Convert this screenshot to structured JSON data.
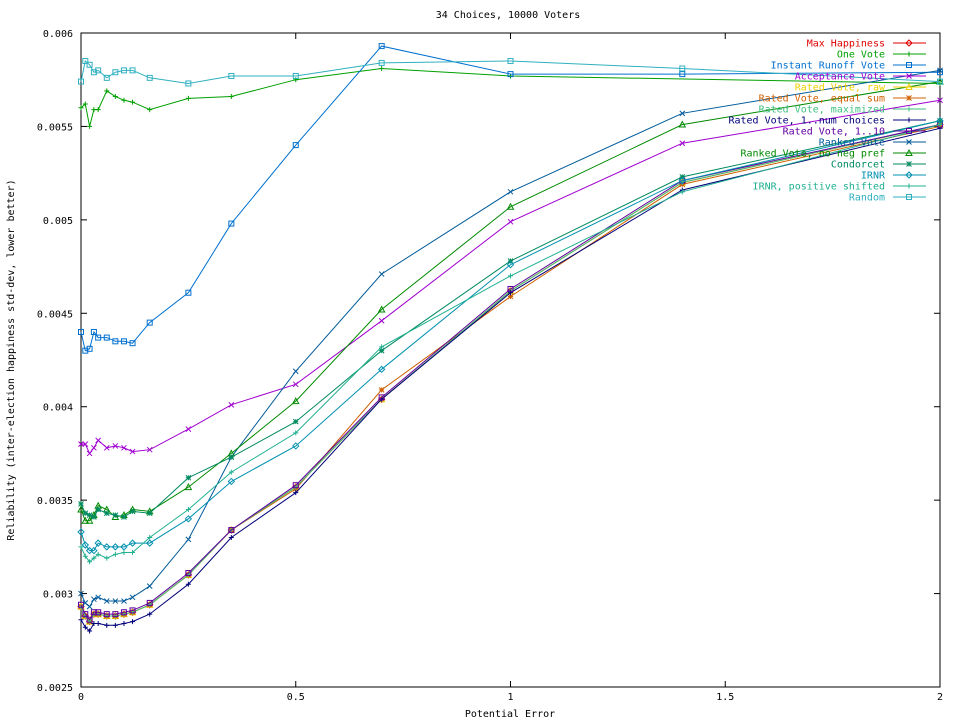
{
  "chart_data": {
    "type": "line",
    "title": "34 Choices, 10000 Voters",
    "xlabel": "Potential Error",
    "ylabel": "Reliability (inter-election happiness std-dev, lower better)",
    "xlim": [
      0,
      2
    ],
    "ylim": [
      0.0025,
      0.006
    ],
    "x_ticks": [
      "0",
      "0.5",
      "1",
      "1.5",
      "2"
    ],
    "y_ticks": [
      "0.0025",
      "0.003",
      "0.0035",
      "0.004",
      "0.0045",
      "0.005",
      "0.0055",
      "0.006"
    ],
    "grid": false,
    "legend_position": "top-right",
    "series": [
      {
        "name": "Max Happiness",
        "color": "#e00000",
        "marker": "diamond",
        "x": [
          0,
          0.01,
          0.02,
          0.03,
          0.04,
          0.06,
          0.08,
          0.1,
          0.12,
          0.16,
          0.25,
          0.35,
          0.5,
          0.7,
          1,
          1.4,
          2
        ],
        "y": [
          0.00293,
          0.00288,
          0.00285,
          0.00289,
          0.00289,
          0.00288,
          0.00288,
          0.00289,
          0.0029,
          0.00294,
          0.0031,
          0.00334,
          0.00357,
          0.00404,
          0.00462,
          0.0052,
          0.00551
        ]
      },
      {
        "name": "One Vote",
        "color": "#00a000",
        "marker": "plus",
        "x": [
          0,
          0.01,
          0.02,
          0.03,
          0.04,
          0.06,
          0.08,
          0.1,
          0.12,
          0.16,
          0.25,
          0.35,
          0.5,
          0.7,
          1,
          2
        ],
        "y": [
          0.0056,
          0.00562,
          0.0055,
          0.00559,
          0.00559,
          0.00569,
          0.00566,
          0.00564,
          0.00563,
          0.00559,
          0.00565,
          0.00566,
          0.00575,
          0.00581,
          0.00577,
          0.00573
        ]
      },
      {
        "name": "Instant Runoff Vote",
        "color": "#0070d0",
        "marker": "square",
        "x": [
          0,
          0.01,
          0.02,
          0.03,
          0.04,
          0.06,
          0.08,
          0.1,
          0.12,
          0.16,
          0.25,
          0.35,
          0.5,
          0.7,
          1,
          1.4,
          2
        ],
        "y": [
          0.0044,
          0.0043,
          0.00431,
          0.0044,
          0.00437,
          0.00437,
          0.00435,
          0.00435,
          0.00434,
          0.00445,
          0.00461,
          0.00498,
          0.0054,
          0.00593,
          0.00578,
          0.00578,
          0.00579
        ]
      },
      {
        "name": "Acceptance Vote",
        "color": "#a000d0",
        "marker": "x",
        "x": [
          0,
          0.01,
          0.02,
          0.03,
          0.04,
          0.06,
          0.08,
          0.1,
          0.12,
          0.16,
          0.25,
          0.35,
          0.5,
          0.7,
          1,
          1.4,
          2
        ],
        "y": [
          0.0038,
          0.0038,
          0.00375,
          0.00378,
          0.00382,
          0.00378,
          0.00379,
          0.00378,
          0.00376,
          0.00377,
          0.00388,
          0.00401,
          0.00412,
          0.00446,
          0.00499,
          0.00541,
          0.00564
        ]
      },
      {
        "name": "Rated Vote, raw",
        "color": "#f0d000",
        "marker": "triangle",
        "x": [
          0,
          0.01,
          0.02,
          0.03,
          0.04,
          0.06,
          0.08,
          0.1,
          0.12,
          0.16,
          0.25,
          0.35,
          0.5,
          0.7,
          1,
          1.4,
          2
        ],
        "y": [
          0.00293,
          0.00288,
          0.00285,
          0.00289,
          0.00289,
          0.00288,
          0.00288,
          0.00289,
          0.0029,
          0.00294,
          0.0031,
          0.00334,
          0.00357,
          0.00404,
          0.00462,
          0.0052,
          0.00551
        ]
      },
      {
        "name": "Rated Vote, equal sum",
        "color": "#d06000",
        "marker": "star",
        "x": [
          0,
          0.01,
          0.02,
          0.03,
          0.04,
          0.06,
          0.08,
          0.1,
          0.12,
          0.16,
          0.25,
          0.35,
          0.5,
          0.7,
          1,
          1.4,
          2
        ],
        "y": [
          0.00293,
          0.00288,
          0.00285,
          0.00289,
          0.00289,
          0.00288,
          0.00288,
          0.00289,
          0.0029,
          0.00294,
          0.0031,
          0.00334,
          0.00356,
          0.00409,
          0.00459,
          0.00519,
          0.0055
        ]
      },
      {
        "name": "Rated Vote, maximized",
        "color": "#40c080",
        "marker": "plus",
        "x": [
          0,
          0.01,
          0.02,
          0.03,
          0.04,
          0.06,
          0.08,
          0.1,
          0.12,
          0.16,
          0.25,
          0.35,
          0.5,
          0.7,
          1,
          1.4,
          2
        ],
        "y": [
          0.00293,
          0.00288,
          0.00285,
          0.00289,
          0.00289,
          0.00288,
          0.00288,
          0.00289,
          0.0029,
          0.00294,
          0.0031,
          0.00334,
          0.00357,
          0.00404,
          0.00462,
          0.0052,
          0.00551
        ]
      },
      {
        "name": "Rated Vote, 1..num choices",
        "color": "#00007a",
        "marker": "plus",
        "x": [
          0,
          0.01,
          0.02,
          0.03,
          0.04,
          0.06,
          0.08,
          0.1,
          0.12,
          0.16,
          0.25,
          0.35,
          0.5,
          0.7,
          1,
          1.4,
          2
        ],
        "y": [
          0.00286,
          0.00282,
          0.0028,
          0.00284,
          0.00284,
          0.00283,
          0.00283,
          0.00284,
          0.00285,
          0.00289,
          0.00305,
          0.0033,
          0.00354,
          0.00404,
          0.00461,
          0.00516,
          0.00549
        ]
      },
      {
        "name": "Rated Vote, 1..10",
        "color": "#6000a0",
        "marker": "square",
        "x": [
          0,
          0.01,
          0.02,
          0.03,
          0.04,
          0.06,
          0.08,
          0.1,
          0.12,
          0.16,
          0.25,
          0.35,
          0.5,
          0.7,
          1,
          1.4,
          2
        ],
        "y": [
          0.00294,
          0.00289,
          0.00286,
          0.0029,
          0.0029,
          0.00289,
          0.00289,
          0.0029,
          0.00291,
          0.00295,
          0.00311,
          0.00334,
          0.00358,
          0.00405,
          0.00463,
          0.00521,
          0.00551
        ]
      },
      {
        "name": "Ranked Vote",
        "color": "#005a9a",
        "marker": "x",
        "x": [
          0,
          0.01,
          0.02,
          0.03,
          0.04,
          0.06,
          0.08,
          0.1,
          0.12,
          0.16,
          0.25,
          0.35,
          0.5,
          0.7,
          1,
          1.4,
          2
        ],
        "y": [
          0.003,
          0.00295,
          0.00293,
          0.00297,
          0.00298,
          0.00296,
          0.00296,
          0.00296,
          0.00298,
          0.00304,
          0.00329,
          0.00373,
          0.00419,
          0.00471,
          0.00515,
          0.00557,
          0.0058
        ]
      },
      {
        "name": "Ranked Vote, no neg pref",
        "color": "#008a00",
        "marker": "triangle",
        "x": [
          0,
          0.01,
          0.02,
          0.03,
          0.04,
          0.06,
          0.08,
          0.1,
          0.12,
          0.16,
          0.25,
          0.35,
          0.5,
          0.7,
          1,
          1.4,
          2
        ],
        "y": [
          0.00345,
          0.00339,
          0.00339,
          0.00342,
          0.00347,
          0.00345,
          0.00341,
          0.00342,
          0.00345,
          0.00344,
          0.00357,
          0.00375,
          0.00403,
          0.00452,
          0.00507,
          0.00551,
          0.00574
        ]
      },
      {
        "name": "Condorcet",
        "color": "#008a60",
        "marker": "star",
        "x": [
          0,
          0.01,
          0.02,
          0.03,
          0.04,
          0.06,
          0.08,
          0.1,
          0.12,
          0.16,
          0.25,
          0.35,
          0.5,
          0.7,
          1,
          1.4,
          2
        ],
        "y": [
          0.00348,
          0.00343,
          0.00342,
          0.00341,
          0.00345,
          0.00343,
          0.00342,
          0.00341,
          0.00344,
          0.00343,
          0.00362,
          0.00373,
          0.00392,
          0.0043,
          0.00478,
          0.00523,
          0.00553
        ]
      },
      {
        "name": "IRNR",
        "color": "#0090b0",
        "marker": "diamond",
        "x": [
          0,
          0.01,
          0.02,
          0.03,
          0.04,
          0.06,
          0.08,
          0.1,
          0.12,
          0.16,
          0.25,
          0.35,
          0.5,
          0.7,
          1,
          1.4,
          2
        ],
        "y": [
          0.00333,
          0.00326,
          0.00323,
          0.00323,
          0.00327,
          0.00325,
          0.00325,
          0.00325,
          0.00327,
          0.00327,
          0.0034,
          0.0036,
          0.00379,
          0.0042,
          0.00476,
          0.00521,
          0.00553
        ]
      },
      {
        "name": "IRNR, positive shifted",
        "color": "#20b090",
        "marker": "plus",
        "x": [
          0,
          0.01,
          0.02,
          0.03,
          0.04,
          0.06,
          0.08,
          0.1,
          0.12,
          0.16,
          0.25,
          0.35,
          0.5,
          0.7,
          1,
          1.4,
          2
        ],
        "y": [
          0.00325,
          0.0032,
          0.00317,
          0.00319,
          0.00321,
          0.00319,
          0.00321,
          0.00322,
          0.00322,
          0.0033,
          0.00345,
          0.00365,
          0.00386,
          0.00432,
          0.0047,
          0.00515,
          0.00551
        ]
      },
      {
        "name": "Random",
        "color": "#30b0c0",
        "marker": "square",
        "x": [
          0,
          0.01,
          0.02,
          0.03,
          0.04,
          0.06,
          0.08,
          0.1,
          0.12,
          0.16,
          0.25,
          0.35,
          0.5,
          0.7,
          1,
          1.4,
          2
        ],
        "y": [
          0.00574,
          0.00585,
          0.00583,
          0.00579,
          0.0058,
          0.00576,
          0.00579,
          0.0058,
          0.0058,
          0.00576,
          0.00573,
          0.00577,
          0.00577,
          0.00584,
          0.00585,
          0.00581,
          0.00574
        ]
      }
    ]
  }
}
